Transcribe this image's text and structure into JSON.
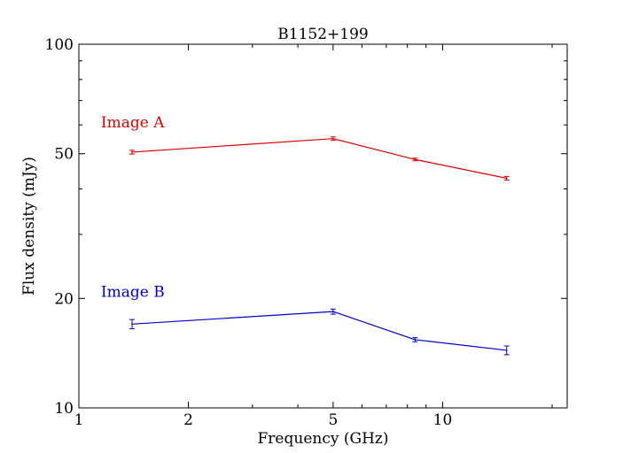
{
  "chart_data": {
    "type": "line",
    "title": "B1152+199",
    "xlabel": "Frequency (GHz)",
    "ylabel": "Flux density (mJy)",
    "xscale": "log",
    "yscale": "log",
    "xlim": [
      1,
      22
    ],
    "ylim": [
      10,
      100
    ],
    "grid": false,
    "xticks": [
      {
        "value": 1,
        "label": "1"
      },
      {
        "value": 2,
        "label": "2"
      },
      {
        "value": 5,
        "label": "5"
      },
      {
        "value": 10,
        "label": "10"
      }
    ],
    "yticks": [
      {
        "value": 10,
        "label": "10"
      },
      {
        "value": 20,
        "label": "20"
      },
      {
        "value": 50,
        "label": "50"
      },
      {
        "value": 100,
        "label": "100"
      }
    ],
    "annotations": [
      {
        "text": "Image A",
        "color": "#dd0000",
        "x": 1.15,
        "y": 59
      },
      {
        "text": "Image B",
        "color": "#0000cc",
        "x": 1.15,
        "y": 20.2
      }
    ],
    "series": [
      {
        "color": "#dd0000",
        "x": [
          1.4,
          5.0,
          8.4,
          15.0
        ],
        "y": [
          50.5,
          55.0,
          48.2,
          42.8
        ],
        "yerr": [
          0.6,
          0.6,
          0.4,
          0.5
        ]
      },
      {
        "color": "#0000cc",
        "x": [
          1.4,
          5.0,
          8.4,
          15.0
        ],
        "y": [
          17.0,
          18.4,
          15.4,
          14.4
        ],
        "yerr": [
          0.5,
          0.3,
          0.2,
          0.4
        ]
      }
    ]
  }
}
